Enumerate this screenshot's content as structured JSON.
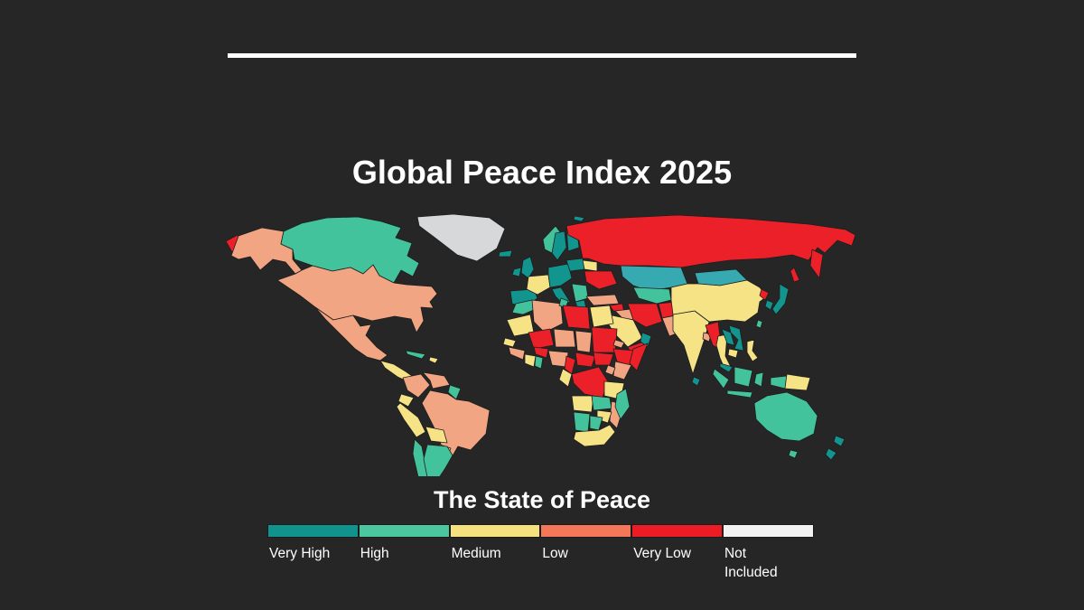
{
  "page": {
    "title": "Global Peace Index 2025",
    "background_color": "#262626",
    "divider_color": "#ffffff"
  },
  "legend": {
    "title": "The State of Peace",
    "items": [
      {
        "label": "Very High",
        "color": "#11938D"
      },
      {
        "label": "High",
        "color": "#4CC69E"
      },
      {
        "label": "Medium",
        "color": "#F5E17E"
      },
      {
        "label": "Low",
        "color": "#F4775A"
      },
      {
        "label": "Very Low",
        "color": "#EC1C24"
      },
      {
        "label": "Not Included",
        "color": "#F2F2F2"
      }
    ]
  },
  "chart_data": {
    "type": "heatmap",
    "subtype": "world-choropleth",
    "title": "Global Peace Index 2025",
    "legend_title": "The State of Peace",
    "categories": [
      "Very High",
      "High",
      "Medium",
      "Low",
      "Very Low",
      "Not Included"
    ],
    "legend_position": "bottom",
    "palette": {
      "very_high": "#12958F",
      "high": "#43C39B",
      "medium": "#F6E385",
      "low": "#F2A583",
      "very_low": "#EC2028",
      "not_included": "#D6D8DA",
      "alt_teal": "#36A9B1"
    },
    "regions": {
      "chukotka-west": "very_low",
      "alaska": "low",
      "canada": "high",
      "greenland": "not_included",
      "iceland": "very_high",
      "usa": "low",
      "mexico": "low",
      "central-america": "medium",
      "panama-costa-rica": "very_high",
      "cuba": "high",
      "hispaniola": "medium",
      "colombia": "low",
      "venezuela": "low",
      "guyanas": "high",
      "brazil": "low",
      "ecuador": "medium",
      "peru": "medium",
      "bolivia": "medium",
      "paraguay": "medium",
      "chile": "high",
      "argentina": "high",
      "svalbard": "very_high",
      "norway": "high",
      "sweden": "very_high",
      "finland": "very_high",
      "uk": "very_high",
      "ireland": "very_high",
      "iberia": "very_high",
      "france": "medium",
      "central-europe": "very_high",
      "italy": "very_high",
      "balkans": "high",
      "greece": "very_high",
      "poland-baltics": "very_high",
      "belarus": "medium",
      "ukraine": "very_low",
      "russia": "very_low",
      "kamchatka": "very_low",
      "sakhalin": "very_low",
      "kazakhstan": "alt_teal",
      "mongolia": "alt_teal",
      "central-asia": "high",
      "turkey": "low",
      "syria": "very_low",
      "iraq": "low",
      "saudi-arabia": "medium",
      "yemen": "very_low",
      "oman-uae": "very_high",
      "iran": "very_low",
      "afghanistan": "very_low",
      "pakistan": "low",
      "india": "medium",
      "sri-lanka": "very_high",
      "bangladesh": "low",
      "china": "medium",
      "north-korea": "very_low",
      "south-korea": "very_high",
      "japan": "very_high",
      "taiwan": "high",
      "myanmar": "very_low",
      "thailand": "medium",
      "laos": "very_high",
      "vietnam": "very_high",
      "cambodia": "medium",
      "malaysia": "very_high",
      "sumatra": "high",
      "java": "high",
      "borneo": "high",
      "sulawesi": "high",
      "west-papua": "high",
      "papua-new-guinea": "medium",
      "philippines": "medium",
      "australia": "high",
      "tasmania": "high",
      "new-zealand-north": "very_high",
      "new-zealand-south": "very_high",
      "morocco": "high",
      "mauritania": "medium",
      "algeria": "low",
      "tunisia": "high",
      "libya": "very_low",
      "egypt": "medium",
      "mali": "very_low",
      "niger": "low",
      "chad": "low",
      "sudan": "very_low",
      "eritrea": "low",
      "ethiopia": "very_low",
      "somalia": "very_low",
      "senegal": "medium",
      "guinea": "low",
      "ivory-coast": "medium",
      "ghana": "high",
      "burkina-faso": "very_low",
      "nigeria": "low",
      "cameroon": "very_low",
      "central-african-republic": "very_low",
      "south-sudan": "very_low",
      "kenya": "low",
      "uganda": "low",
      "drc": "very_low",
      "congo-gabon": "medium",
      "tanzania": "medium",
      "angola": "medium",
      "zambia": "high",
      "mozambique": "low",
      "zimbabwe": "medium",
      "namibia": "high",
      "botswana": "high",
      "south-africa": "medium",
      "madagascar": "high"
    }
  }
}
